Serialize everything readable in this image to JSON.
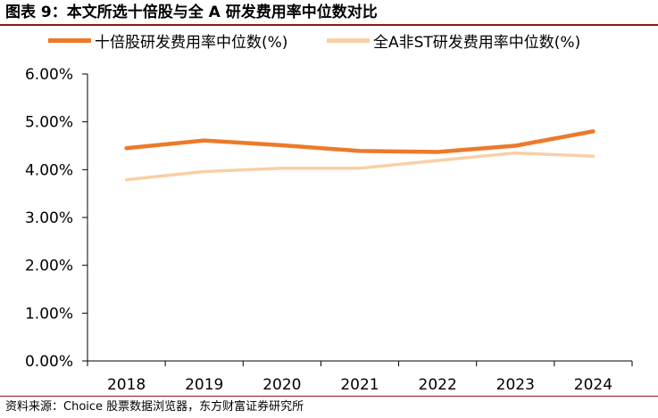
{
  "title": "图表 9：本文所选十倍股与全 A 研发费用率中位数对比",
  "source": "资料来源：Choice 股票数据浏览器，东方财富证券研究所",
  "colors": {
    "series1": "#ec7a2a",
    "series2": "#f9cfa6",
    "axis": "#000000"
  },
  "chart_data": {
    "type": "line",
    "title": "图表 9：本文所选十倍股与全 A 研发费用率中位数对比",
    "x": [
      "2018",
      "2019",
      "2020",
      "2021",
      "2022",
      "2023",
      "2024"
    ],
    "ylim": [
      0,
      6
    ],
    "yticks": [
      "0.00%",
      "1.00%",
      "2.00%",
      "3.00%",
      "4.00%",
      "5.00%",
      "6.00%"
    ],
    "ytick_values": [
      0,
      1,
      2,
      3,
      4,
      5,
      6
    ],
    "grid": false,
    "legend": "top",
    "series": [
      {
        "name": "十倍股研发费用率中位数(%)",
        "values": [
          4.45,
          4.61,
          4.51,
          4.39,
          4.37,
          4.5,
          4.8
        ]
      },
      {
        "name": "全A非ST研发费用率中位数(%)",
        "values": [
          3.79,
          3.96,
          4.03,
          4.03,
          4.19,
          4.35,
          4.28
        ]
      }
    ]
  }
}
